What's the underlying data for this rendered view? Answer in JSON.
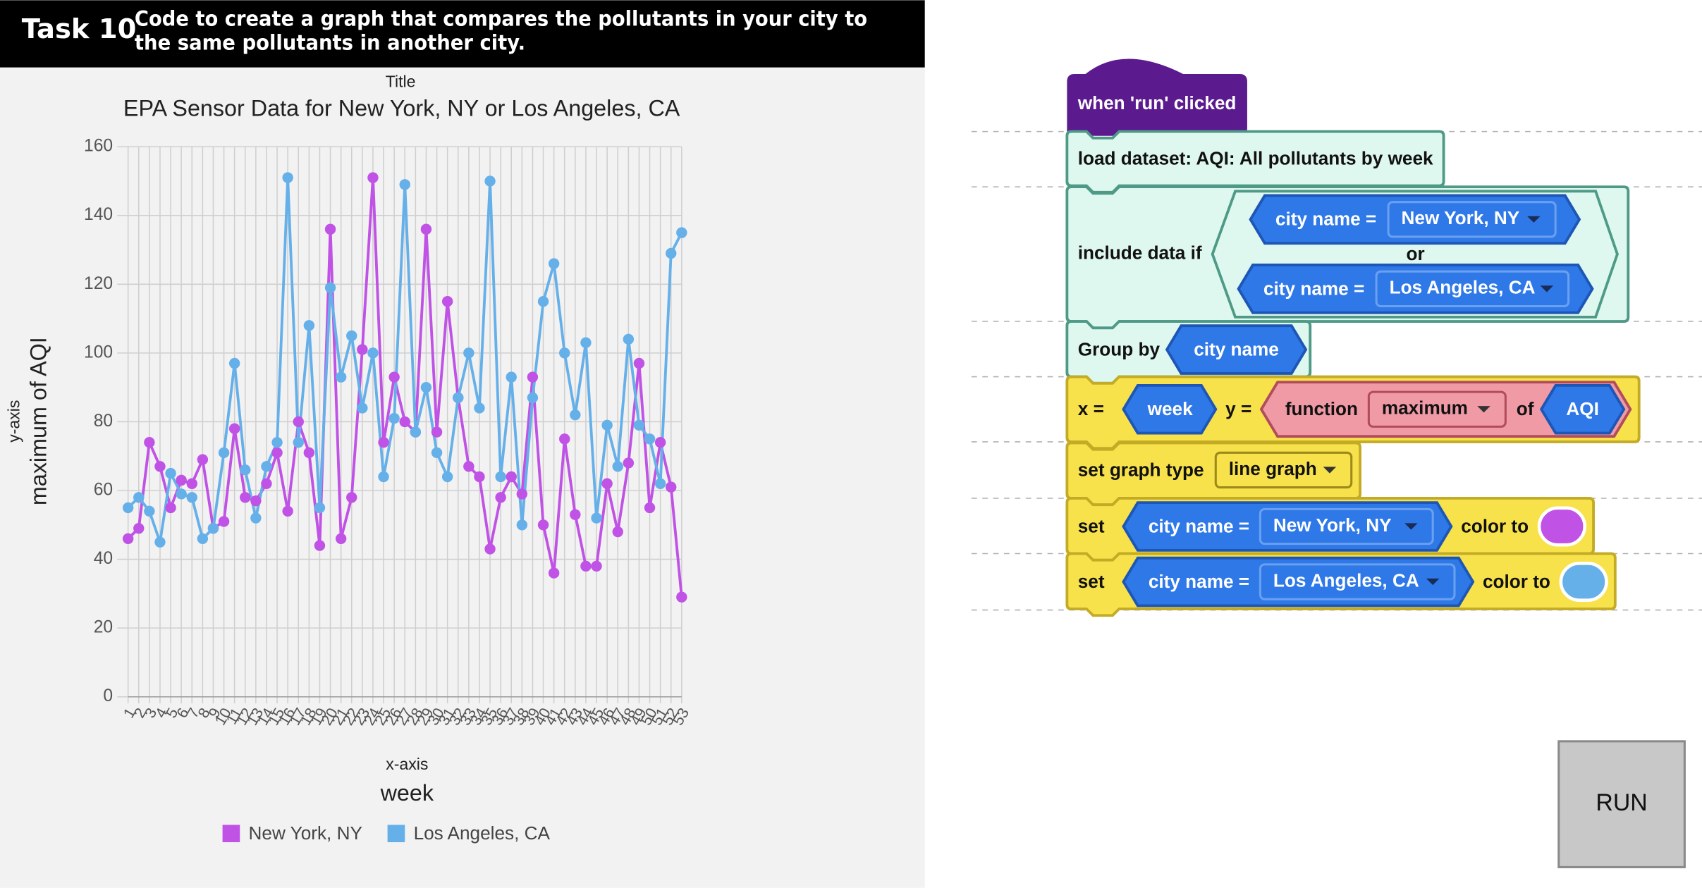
{
  "header": {
    "task": "Task 10",
    "description": [
      "Code to create a graph that compares the pollutants in your city to",
      "the same pollutants in another city."
    ]
  },
  "chart_data": {
    "type": "line",
    "title_caption": "Title",
    "title": "EPA Sensor Data for New York, NY or Los Angeles, CA",
    "y_axis_caption": "y-axis",
    "y_label": "maximum of AQI",
    "x_axis_caption": "x-axis",
    "x_label": "week",
    "x": [
      1,
      2,
      3,
      4,
      5,
      6,
      7,
      8,
      9,
      10,
      11,
      12,
      13,
      14,
      15,
      16,
      17,
      18,
      19,
      20,
      21,
      22,
      23,
      24,
      25,
      26,
      27,
      28,
      29,
      30,
      31,
      32,
      33,
      34,
      35,
      36,
      37,
      38,
      39,
      40,
      41,
      42,
      43,
      44,
      45,
      46,
      47,
      48,
      49,
      50,
      51,
      52,
      53
    ],
    "xlim": [
      1,
      53
    ],
    "xticks": [
      1,
      2,
      3,
      4,
      5,
      6,
      7,
      8,
      9,
      10,
      11,
      12,
      13,
      14,
      15,
      16,
      17,
      18,
      19,
      20,
      21,
      22,
      23,
      24,
      25,
      26,
      27,
      28,
      29,
      30,
      31,
      32,
      33,
      34,
      35,
      36,
      37,
      38,
      39,
      40,
      41,
      42,
      43,
      44,
      45,
      46,
      47,
      48,
      49,
      50,
      51,
      52,
      53
    ],
    "ylim": [
      0,
      160
    ],
    "yticks": [
      0,
      20,
      40,
      60,
      80,
      100,
      120,
      140,
      160
    ],
    "grid": true,
    "series": [
      {
        "name": "New York, NY",
        "color": "#c052e6",
        "values": [
          46,
          49,
          74,
          67,
          55,
          63,
          62,
          69,
          49,
          51,
          78,
          58,
          57,
          62,
          71,
          54,
          80,
          71,
          44,
          136,
          46,
          58,
          101,
          151,
          74,
          93,
          80,
          77,
          136,
          77,
          115,
          87,
          67,
          64,
          43,
          58,
          64,
          59,
          93,
          50,
          36,
          75,
          53,
          38,
          38,
          62,
          48,
          68,
          97,
          55,
          74,
          61,
          29
        ]
      },
      {
        "name": "Los Angeles, CA",
        "color": "#66b0ea",
        "values": [
          55,
          58,
          54,
          45,
          65,
          59,
          58,
          46,
          49,
          71,
          97,
          66,
          52,
          67,
          74,
          151,
          74,
          108,
          55,
          119,
          93,
          105,
          84,
          100,
          64,
          81,
          149,
          77,
          90,
          71,
          64,
          87,
          100,
          84,
          150,
          64,
          93,
          50,
          87,
          115,
          126,
          100,
          82,
          103,
          52,
          79,
          67,
          104,
          79,
          75,
          62,
          129,
          135
        ]
      }
    ]
  },
  "blocks": {
    "hat": "when 'run' clicked",
    "load": "load dataset: AQI: All pollutants by week",
    "include": {
      "label": "include data if",
      "cond1": {
        "field": "city name =",
        "value": "New York, NY"
      },
      "or": "or",
      "cond2": {
        "field": "city name =",
        "value": "Los Angeles, CA"
      }
    },
    "group": {
      "label": "Group by",
      "field": "city name"
    },
    "plot": {
      "x_label": "x =",
      "x": "week",
      "y_label": "y =",
      "function": "function",
      "func": "maximum",
      "of": "of",
      "y": "AQI"
    },
    "graph_type": {
      "label": "set graph type",
      "value": "line graph"
    },
    "set1": {
      "label": "set",
      "field": "city name =",
      "value": "New York, NY",
      "color_label": "color to"
    },
    "set2": {
      "label": "set",
      "field": "city name =",
      "value": "Los Angeles, CA",
      "color_label": "color to"
    }
  },
  "run_button": "RUN"
}
